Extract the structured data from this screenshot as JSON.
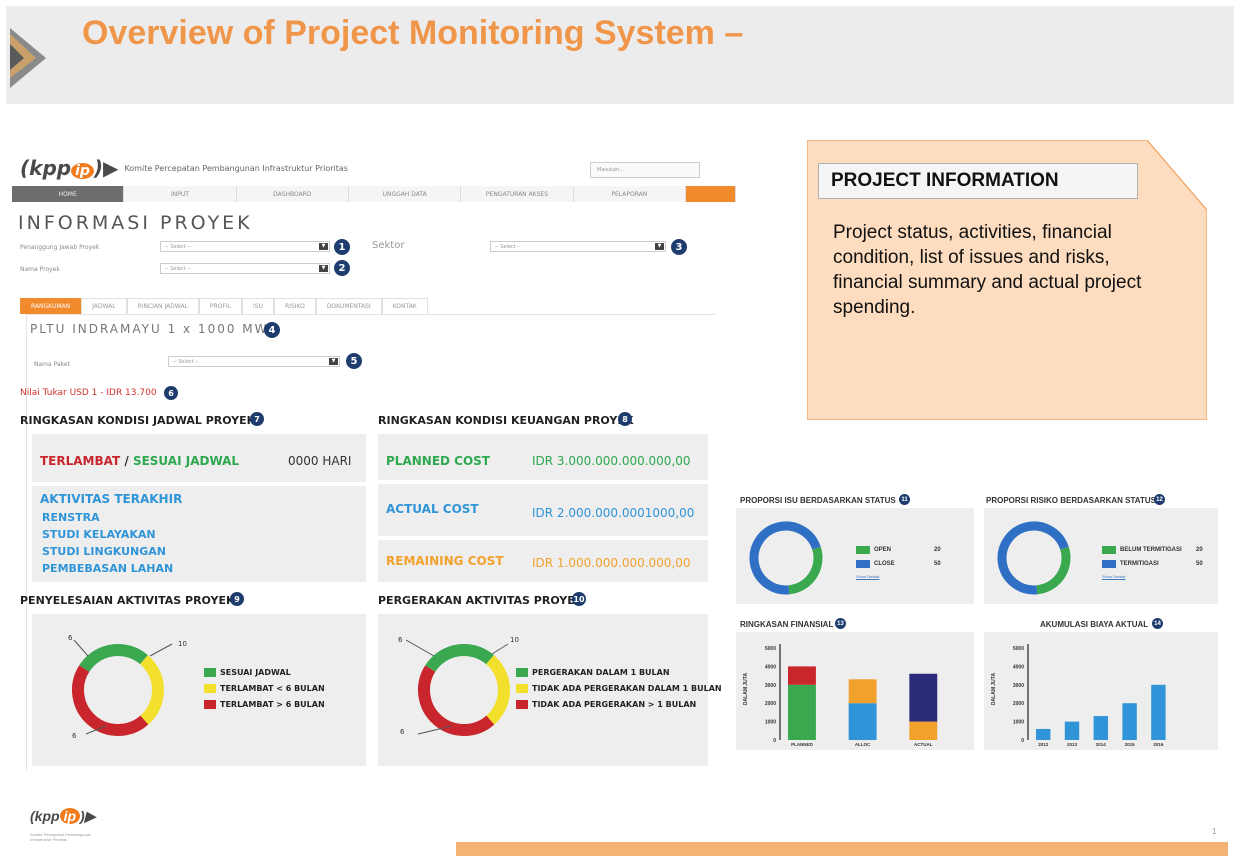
{
  "slide": {
    "title": "Overview of Project Monitoring System –",
    "page_number": "1",
    "colors": {
      "accent": "#f0964a",
      "header_bg": "#ececec",
      "callout_bg": "#fddcbf",
      "footer_bar": "#f4b374"
    }
  },
  "app": {
    "logo": "kppip",
    "logo_highlight": "ip",
    "tagline": "Komite Percepatan Pembangunan Infrastruktur Prioritas",
    "search_placeholder": "Masukan...",
    "nav": [
      "HOME",
      "INPUT",
      "DASHBOARD",
      "UNGGAH DATA",
      "PENGATURAN AKSES",
      "PELAPORAN"
    ],
    "heading": "INFORMASI PROYEK",
    "filters": {
      "owner_label": "Penanggung Jawab Proyek",
      "owner_value": "-- Select --",
      "project_label": "Nama Proyek",
      "project_value": "-- Select --",
      "sector_label": "Sektor",
      "sector_value": "-- Select --"
    },
    "tabs": [
      "RANGKUMAN",
      "JADWAL",
      "RINCIAN JADWAL",
      "PROFIL",
      "ISU",
      "RISIKO",
      "DOKUMENTASI",
      "KONTAK"
    ],
    "project_name": "PLTU INDRAMAYU 1 x 1000 MW",
    "package_label": "Nama Paket",
    "package_value": "-- Select --",
    "exchange_rate": "Nilai Tukar USD 1 - IDR 13.700",
    "badges": [
      "1",
      "2",
      "3",
      "4",
      "5",
      "6",
      "7",
      "8",
      "9",
      "10",
      "11",
      "12",
      "13",
      "14"
    ],
    "schedule": {
      "title": "RINGKASAN KONDISI JADWAL PROYEK",
      "status_late": "TERLAMBAT",
      "status_sep": " / ",
      "status_ontime": "SESUAI JADWAL",
      "days": "0000 HARI",
      "last_activity_title": "AKTIVITAS TERAKHIR",
      "activities": [
        "RENSTRA",
        "STUDI KELAYAKAN",
        "STUDI LINGKUNGAN",
        "PEMBEBASAN LAHAN"
      ]
    },
    "finance": {
      "title": "RINGKASAN KONDISI KEUANGAN PROYEK",
      "rows": [
        {
          "label": "PLANNED COST",
          "value": "IDR 3.000.000.000.000,00"
        },
        {
          "label": "ACTUAL COST",
          "value": "IDR 2.000.000.0001000,00"
        },
        {
          "label": "REMAINING COST",
          "value": "IDR 1.000.000.000.000,00"
        }
      ]
    },
    "completion": {
      "title": "PENYELESAIAN AKTIVITAS PROYEK",
      "labels": [
        "6",
        "10",
        "6"
      ],
      "legend": [
        "SESUAI JADWAL",
        "TERLAMBAT < 6 BULAN",
        "TERLAMBAT > 6 BULAN"
      ],
      "values": [
        6,
        6,
        10
      ],
      "colors": [
        "#3aa84f",
        "#f2e02c",
        "#c8262c"
      ]
    },
    "movement": {
      "title": "PERGERAKAN AKTIVITAS PROYEK",
      "labels": [
        "6",
        "10",
        "6"
      ],
      "legend": [
        "PERGERAKAN DALAM 1 BULAN",
        "TIDAK ADA PERGERAKAN DALAM 1 BULAN",
        "TIDAK ADA PERGERAKAN > 1 BULAN"
      ],
      "values": [
        6,
        6,
        10
      ],
      "colors": [
        "#3aa84f",
        "#f2e02c",
        "#c8262c"
      ]
    }
  },
  "callout": {
    "title": "PROJECT INFORMATION",
    "text": "Project status, activities, financial condition, list of issues and risks, financial summary and actual project spending."
  },
  "dashboard": {
    "issues": {
      "title": "PROPORSI ISU BERDASARKAN STATUS",
      "legend": [
        {
          "label": "OPEN",
          "value": "20",
          "color": "#3aa84f"
        },
        {
          "label": "CLOSE",
          "value": "50",
          "color": "#2f6fc4"
        }
      ],
      "link": "Show Details"
    },
    "risks": {
      "title": "PROPORSI RISIKO BERDASARKAN STATUS",
      "legend": [
        {
          "label": "BELUM TERMITIGASI",
          "value": "20",
          "color": "#3aa84f"
        },
        {
          "label": "TERMITIGASI",
          "value": "50",
          "color": "#2f6fc4"
        }
      ],
      "link": "Show Details"
    },
    "financial": {
      "title": "RINGKASAN FINANSIAL",
      "ylabel": "DALAM JUTA"
    },
    "accumulation": {
      "title": "AKUMULASI BIAYA AKTUAL",
      "ylabel": "DALAM JUTA"
    }
  },
  "chart_data": [
    {
      "type": "bar",
      "title": "RINGKASAN FINANSIAL",
      "ylabel": "DALAM JUTA",
      "ylim": [
        0,
        5000
      ],
      "yticks": [
        "5000",
        "4000",
        "3000",
        "2000",
        "1000",
        "0"
      ],
      "categories": [
        "PLANNED",
        "ALLOC",
        "ACTUAL"
      ],
      "stacked": true,
      "series": [
        {
          "color": "#3aa84f",
          "values": [
            3000,
            0,
            0
          ]
        },
        {
          "color": "#c8262c",
          "values": [
            1000,
            0,
            0
          ]
        },
        {
          "color": "#2f95d8",
          "values": [
            0,
            2000,
            0
          ]
        },
        {
          "color": "#f2a12c",
          "values": [
            0,
            1300,
            1000
          ]
        },
        {
          "color": "#2b2b7a",
          "values": [
            0,
            0,
            2600
          ]
        }
      ]
    },
    {
      "type": "bar",
      "title": "AKUMULASI BIAYA AKTUAL",
      "ylabel": "DALAM JUTA",
      "ylim": [
        0,
        5000
      ],
      "yticks": [
        "5000",
        "4000",
        "3000",
        "2000",
        "1000",
        "0"
      ],
      "categories": [
        "2012",
        "2013",
        "2014",
        "2015",
        "2016"
      ],
      "values": [
        600,
        1000,
        1300,
        2000,
        3000
      ],
      "color": "#2f95d8"
    },
    {
      "type": "pie",
      "title": "PROPORSI ISU BERDASARKAN STATUS",
      "categories": [
        "OPEN",
        "CLOSE"
      ],
      "values": [
        20,
        50
      ]
    },
    {
      "type": "pie",
      "title": "PROPORSI RISIKO BERDASARKAN STATUS",
      "categories": [
        "BELUM TERMITIGASI",
        "TERMITIGASI"
      ],
      "values": [
        20,
        50
      ]
    }
  ]
}
